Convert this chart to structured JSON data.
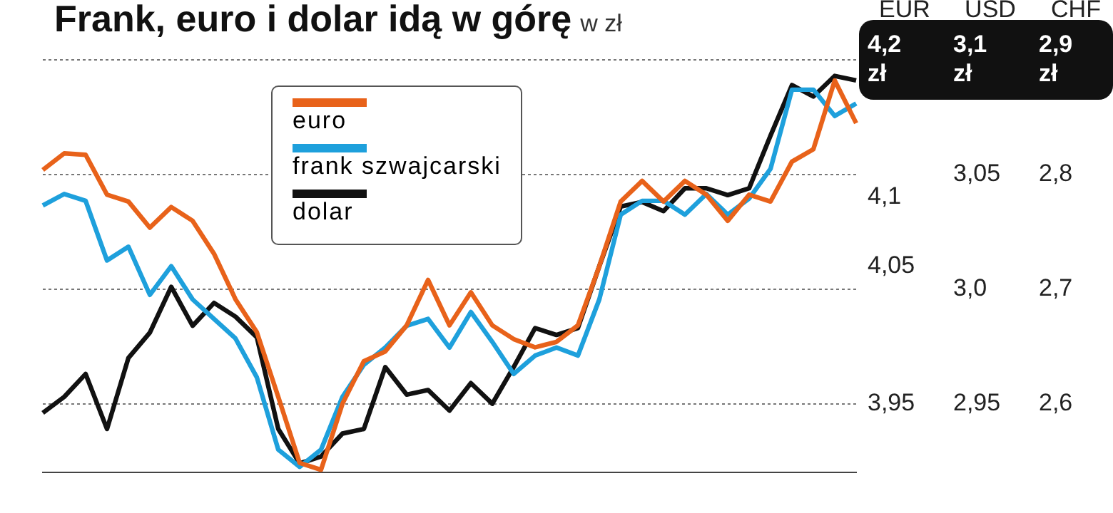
{
  "chart_data": {
    "type": "line",
    "title": "Frank, euro i dolar idą w górę",
    "subtitle": "w zł",
    "ylabel": "EUR",
    "y2label": "USD",
    "y3label": "CHF",
    "categories": [
      null,
      null,
      null,
      null,
      null,
      null,
      null,
      null,
      null,
      null,
      null,
      null,
      null,
      null,
      null,
      null,
      null,
      null,
      null,
      null,
      null,
      null,
      null,
      null,
      null,
      null,
      null,
      null,
      null,
      null,
      null,
      null,
      null,
      null,
      null,
      null,
      null,
      null,
      null
    ],
    "series": [
      {
        "name": "euro",
        "color": "#e8621a",
        "values": [
          4.12,
          4.132,
          4.131,
          4.102,
          4.097,
          4.078,
          4.093,
          4.083,
          4.059,
          4.026,
          4.002,
          3.955,
          3.907,
          3.902,
          3.95,
          3.981,
          3.988,
          4.007,
          4.04,
          4.007,
          4.031,
          4.007,
          3.997,
          3.991,
          3.995,
          4.007,
          4.05,
          4.097,
          4.112,
          4.097,
          4.112,
          4.102,
          4.083,
          4.102,
          4.097,
          4.126,
          4.135,
          4.185,
          4.154
        ]
      },
      {
        "name": "frank szwajcarski",
        "color": "#1ea0dc",
        "axis": "y3",
        "values": [
          2.773,
          2.783,
          2.777,
          2.725,
          2.737,
          2.695,
          2.72,
          2.691,
          2.674,
          2.657,
          2.623,
          2.56,
          2.545,
          2.56,
          2.606,
          2.634,
          2.649,
          2.668,
          2.674,
          2.649,
          2.68,
          2.654,
          2.626,
          2.642,
          2.649,
          2.642,
          2.691,
          2.765,
          2.777,
          2.777,
          2.765,
          2.783,
          2.765,
          2.779,
          2.805,
          2.874,
          2.874,
          2.851,
          2.862
        ]
      },
      {
        "name": "dolar",
        "color": "#111111",
        "axis": "y2",
        "values": [
          2.946,
          2.953,
          2.963,
          2.939,
          2.97,
          2.981,
          3.001,
          2.984,
          2.994,
          2.988,
          2.979,
          2.939,
          2.924,
          2.927,
          2.937,
          2.939,
          2.966,
          2.954,
          2.956,
          2.947,
          2.959,
          2.95,
          2.966,
          2.983,
          2.98,
          2.983,
          3.01,
          3.036,
          3.038,
          3.034,
          3.044,
          3.044,
          3.041,
          3.044,
          3.067,
          3.089,
          3.084,
          3.093,
          3.091
        ]
      }
    ],
    "ylim": [
      3.9,
      4.2
    ],
    "yticks": [
      {
        "value": 4.2,
        "label": "4,2 zł"
      },
      {
        "value": 4.1,
        "label": "4,1"
      },
      {
        "value": 4.05,
        "label": "4,05"
      },
      {
        "value": 3.95,
        "label": "3,95"
      }
    ],
    "y2lim": [
      2.92,
      3.1
    ],
    "y2ticks": [
      {
        "value": 3.1,
        "label": "3,1 zł"
      },
      {
        "value": 3.05,
        "label": "3,05"
      },
      {
        "value": 3.0,
        "label": "3,0"
      },
      {
        "value": 2.95,
        "label": "2,95"
      }
    ],
    "y3lim": [
      2.54,
      2.9
    ],
    "y3ticks": [
      {
        "value": 2.9,
        "label": "2,9 zł"
      },
      {
        "value": 2.8,
        "label": "2,8"
      },
      {
        "value": 2.7,
        "label": "2,7"
      },
      {
        "value": 2.6,
        "label": "2,6"
      }
    ],
    "tick_labels": "y",
    "grid": "y",
    "legend": "top left",
    "marker": "none",
    "line_style": "solid"
  }
}
